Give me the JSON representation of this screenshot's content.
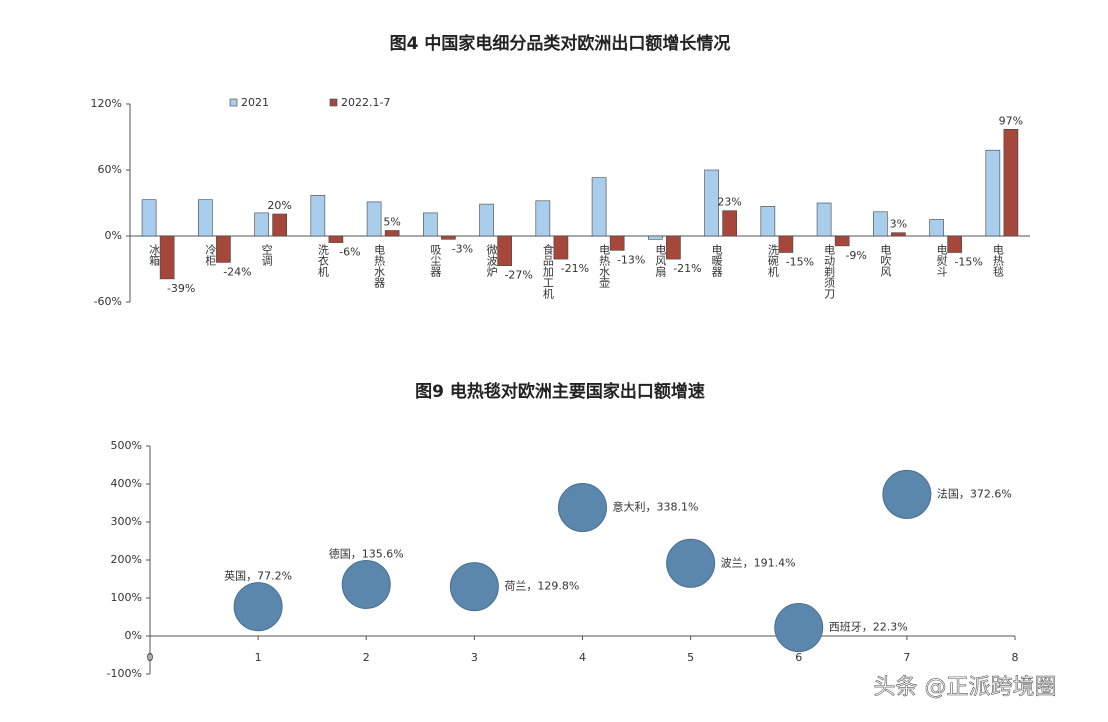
{
  "chart_data": [
    {
      "type": "bar",
      "title": "图4  中国家电细分品类对欧洲出口额增长情况",
      "categories": [
        "冰箱",
        "冷柜",
        "空调",
        "洗衣机",
        "电热水器",
        "吸尘器",
        "微波炉",
        "食品加工机",
        "电热水壶",
        "电风扇",
        "电暖器",
        "洗碗机",
        "电动剃须刀",
        "电吹风",
        "电熨斗",
        "电热毯"
      ],
      "series": [
        {
          "name": "2021",
          "color": "#a9cdec",
          "values": [
            33,
            33,
            21,
            37,
            31,
            21,
            29,
            32,
            53,
            -3,
            60,
            27,
            30,
            22,
            15,
            78
          ]
        },
        {
          "name": "2022.1-7",
          "color": "#a5473b",
          "values": [
            -39,
            -24,
            20,
            -6,
            5,
            -3,
            -27,
            -21,
            -13,
            -21,
            23,
            -15,
            -9,
            3,
            -15,
            97
          ],
          "value_labels": [
            "-39%",
            "-24%",
            "20%",
            "-6%",
            "5%",
            "-3%",
            "-27%",
            "-21%",
            "-13%",
            "-21%",
            "23%",
            "-15%",
            "-9%",
            "3%",
            "-15%",
            "97%"
          ]
        }
      ],
      "ylim": [
        -60,
        120
      ],
      "yticks": [
        {
          "value": -60,
          "label": "-60%"
        },
        {
          "value": 0,
          "label": "0%"
        },
        {
          "value": 60,
          "label": "60%"
        },
        {
          "value": 120,
          "label": "120%"
        }
      ],
      "legend": "top-left"
    },
    {
      "type": "bubble",
      "title": "图9  电热毯对欧洲主要国家出口额增速",
      "x": [
        1,
        2,
        3,
        4,
        5,
        6,
        7
      ],
      "values": [
        77.2,
        135.6,
        129.8,
        338.1,
        191.4,
        22.3,
        372.6
      ],
      "value_labels": [
        "英国，77.2%",
        "德国，135.6%",
        "荷兰，129.8%",
        "意大利，338.1%",
        "波兰，191.4%",
        "西班牙，22.3%",
        "法国，372.6%"
      ],
      "color": "#5b87ad",
      "xlim": [
        0,
        8
      ],
      "xticks": [
        0,
        1,
        2,
        3,
        4,
        5,
        6,
        7,
        8
      ],
      "ylim": [
        -100,
        500
      ],
      "yticks": [
        {
          "value": -100,
          "label": "-100%"
        },
        {
          "value": 0,
          "label": "0%"
        },
        {
          "value": 100,
          "label": "100%"
        },
        {
          "value": 200,
          "label": "200%"
        },
        {
          "value": 300,
          "label": "300%"
        },
        {
          "value": 400,
          "label": "400%"
        },
        {
          "value": 500,
          "label": "500%"
        }
      ]
    }
  ],
  "watermark": "头条 @正派跨境圈"
}
